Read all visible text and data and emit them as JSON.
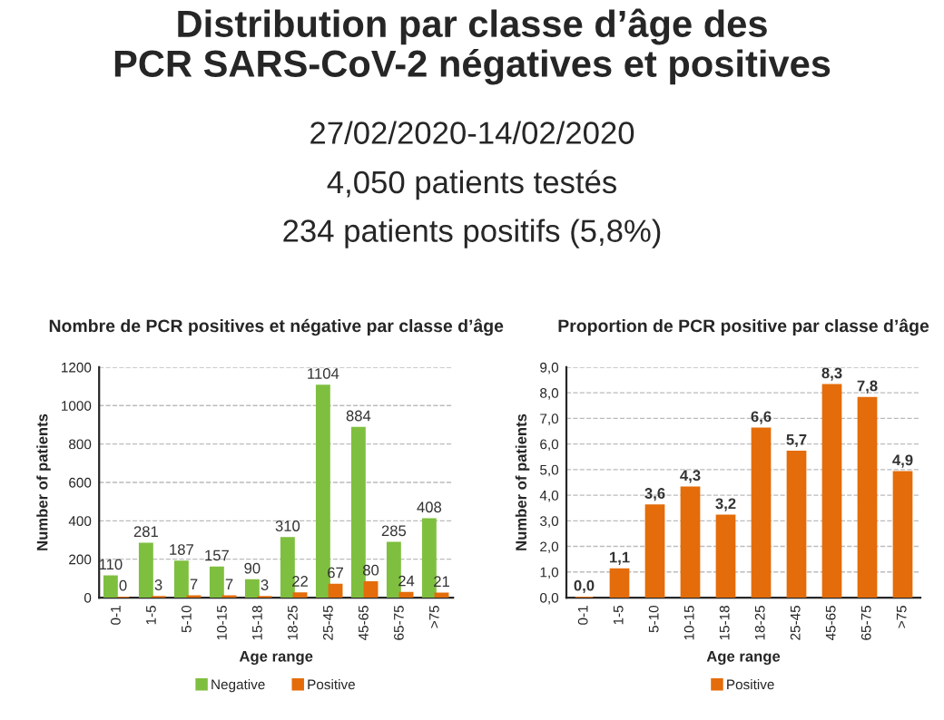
{
  "chart_data": [
    {
      "type": "other",
      "title": "Distribution par classe d’âge des\nPCR SARS-CoV-2 négatives et positives",
      "annotations": [
        "27/02/2020-14/02/2020",
        "4,050 patients testés",
        "234 patients positifs (5,8%)"
      ]
    },
    {
      "type": "bar",
      "title": "Nombre de PCR positives et négative par classe d’âge",
      "xlabel": "Age range",
      "ylabel": "Number of patients",
      "categories": [
        "0-1",
        "1-5",
        "5-10",
        "10-15",
        "15-18",
        "18-25",
        "25-45",
        "45-65",
        "65-75",
        ">75"
      ],
      "series": [
        {
          "name": "Negative",
          "color": "#7fbf3f",
          "values": [
            110,
            281,
            187,
            157,
            90,
            310,
            1104,
            884,
            285,
            408
          ]
        },
        {
          "name": "Positive",
          "color": "#e46c0a",
          "values": [
            0,
            3,
            7,
            7,
            3,
            22,
            67,
            80,
            24,
            21
          ]
        }
      ],
      "ylim": [
        0,
        1200
      ],
      "yticks": [
        0,
        200,
        400,
        600,
        800,
        1000,
        1200
      ],
      "grid": "y",
      "legend": "bottom",
      "data_labels": true
    },
    {
      "type": "bar",
      "title": "Proportion de PCR positive par classe d’âge",
      "xlabel": "Age range",
      "ylabel": "Number of patients",
      "categories": [
        "0-1",
        "1-5",
        "5-10",
        "10-15",
        "15-18",
        "18-25",
        "25-45",
        "45-65",
        "65-75",
        ">75"
      ],
      "series": [
        {
          "name": "Positive",
          "color": "#e46c0a",
          "values": [
            0.0,
            1.1,
            3.6,
            4.3,
            3.2,
            6.6,
            5.7,
            8.3,
            7.8,
            4.9
          ],
          "value_labels": [
            "0,0",
            "1,1",
            "3,6",
            "4,3",
            "3,2",
            "6,6",
            "5,7",
            "8,3",
            "7,8",
            "4,9"
          ]
        }
      ],
      "ylim": [
        0,
        9
      ],
      "yticks": [
        {
          "value": 0,
          "label": "0,0"
        },
        {
          "value": 1,
          "label": "1,0"
        },
        {
          "value": 2,
          "label": "2,0"
        },
        {
          "value": 3,
          "label": "3,0"
        },
        {
          "value": 4,
          "label": "4,0"
        },
        {
          "value": 5,
          "label": "5,0"
        },
        {
          "value": 6,
          "label": "6,0"
        },
        {
          "value": 7,
          "label": "7,0"
        },
        {
          "value": 8,
          "label": "8,0"
        },
        {
          "value": 9,
          "label": "9,0"
        }
      ],
      "grid": "y",
      "legend": "bottom"
    }
  ]
}
